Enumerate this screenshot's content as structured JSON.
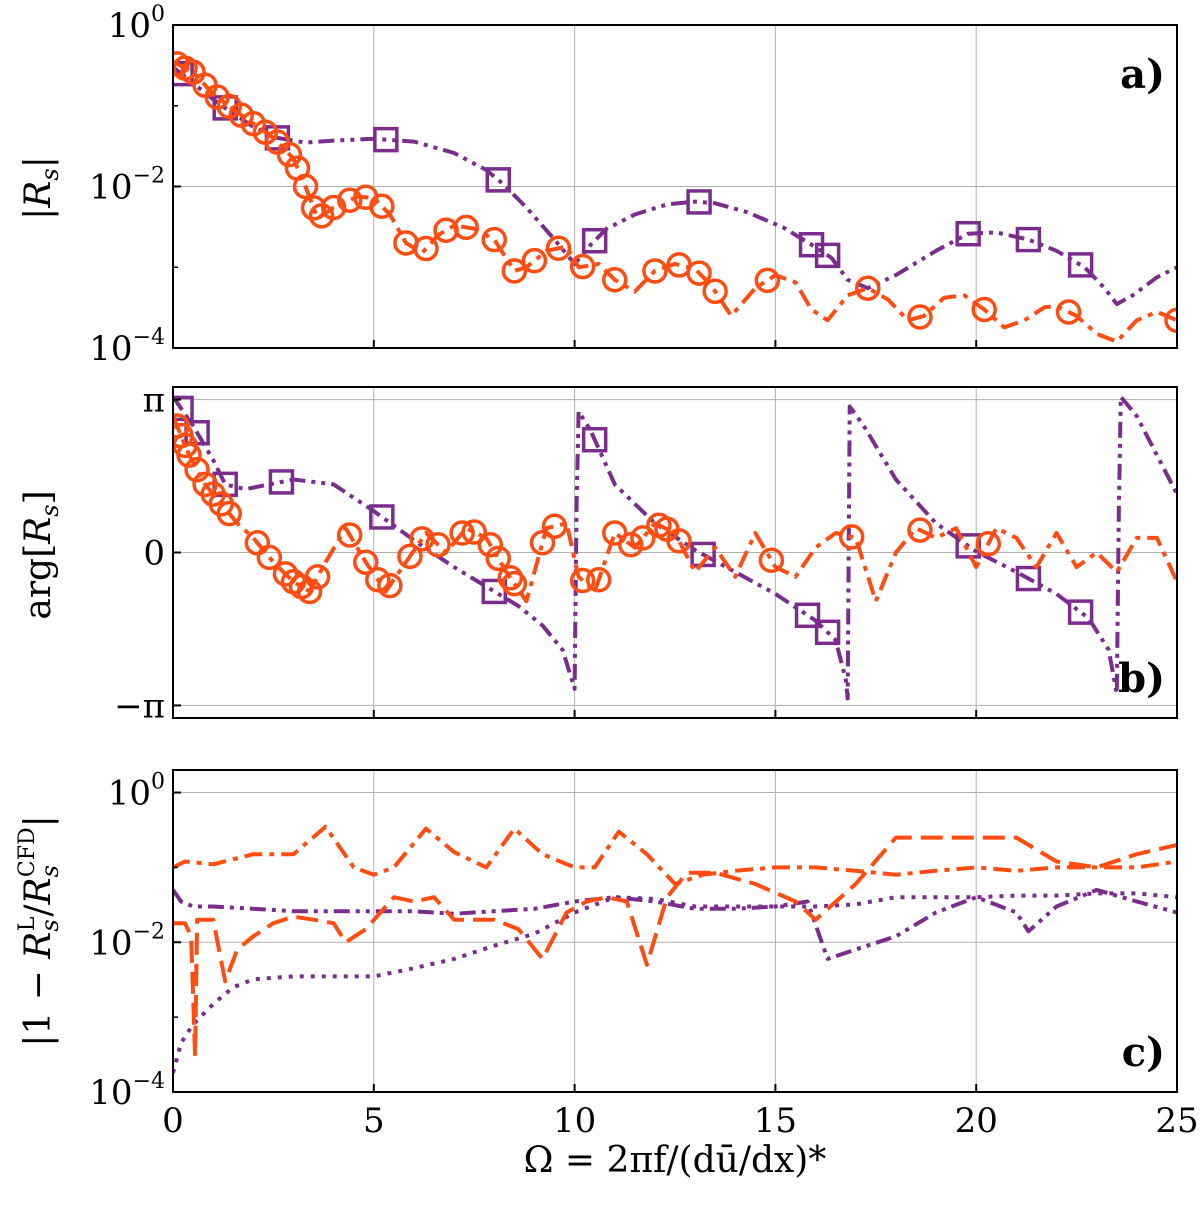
{
  "colors": {
    "purple": "#7B2D8E",
    "orange": "#FF4D12",
    "grid": "#b0b0b0",
    "axis": "#000000"
  },
  "xaxis": {
    "label": "Ω = 2πf/(dū/dx)*",
    "ticks": [
      "0",
      "5",
      "10",
      "15",
      "20",
      "25"
    ],
    "tick_values": [
      0,
      5,
      10,
      15,
      20,
      25
    ],
    "range": [
      0,
      25
    ]
  },
  "chart_data": [
    {
      "type": "line",
      "panel": "a)",
      "ylabel": "|Rs|",
      "yscale": "log",
      "ylim": [
        0.0001,
        1
      ],
      "yticks": [
        {
          "base": "10",
          "exp": "0",
          "value": 1
        },
        {
          "base": "10",
          "exp": "−2",
          "value": 0.01
        },
        {
          "base": "10",
          "exp": "−4",
          "value": 0.0001
        }
      ],
      "grid": true,
      "series": [
        {
          "color": "purple",
          "dash": "dash-dot-dot",
          "marker": "square",
          "x": [
            0.0,
            0.5,
            1.0,
            1.5,
            2.0,
            2.6,
            3.3,
            4.0,
            5.0,
            6.0,
            7.0,
            7.8,
            8.2,
            8.8,
            9.5,
            10.0,
            10.4,
            10.8,
            11.5,
            12.3,
            13.0,
            13.5,
            14.3,
            15.2,
            15.9,
            16.4,
            16.8,
            17.3,
            18.0,
            19.0,
            19.8,
            20.5,
            21.3,
            22.0,
            22.7,
            23.2,
            23.5,
            23.9,
            24.5,
            25.0
          ],
          "y": [
            0.3,
            0.19,
            0.12,
            0.08,
            0.055,
            0.04,
            0.035,
            0.037,
            0.039,
            0.036,
            0.026,
            0.016,
            0.011,
            0.0055,
            0.0022,
            0.0011,
            0.0019,
            0.003,
            0.0045,
            0.006,
            0.0065,
            0.0062,
            0.0048,
            0.0031,
            0.0019,
            0.0013,
            0.0007,
            0.00055,
            0.0008,
            0.0016,
            0.0026,
            0.0027,
            0.0022,
            0.0016,
            0.001,
            0.00055,
            0.00035,
            0.00045,
            0.00075,
            0.001
          ],
          "markers_x": [
            0.2,
            1.3,
            2.6,
            5.3,
            8.1,
            10.5,
            13.1,
            15.9,
            16.3,
            19.8,
            21.3,
            22.6
          ]
        },
        {
          "color": "orange",
          "dash": "dash-dot",
          "marker": "circle",
          "x": [
            0.0,
            0.5,
            1.0,
            1.5,
            2.0,
            2.5,
            3.0,
            3.3,
            3.6,
            4.0,
            4.6,
            5.0,
            5.4,
            5.8,
            6.2,
            6.6,
            7.0,
            7.5,
            8.0,
            8.5,
            8.8,
            9.3,
            9.8,
            10.1,
            10.6,
            11.0,
            11.5,
            12.0,
            12.5,
            13.0,
            13.4,
            13.9,
            14.5,
            15.0,
            15.5,
            15.9,
            16.3,
            16.8,
            17.3,
            17.8,
            18.3,
            18.7,
            19.2,
            19.7,
            20.2,
            20.7,
            21.2,
            21.7,
            22.0,
            22.5,
            23.0,
            23.5,
            24.0,
            24.5,
            25.0
          ],
          "y": [
            0.35,
            0.26,
            0.14,
            0.09,
            0.06,
            0.04,
            0.022,
            0.01,
            0.004,
            0.0055,
            0.0075,
            0.0072,
            0.0045,
            0.002,
            0.0015,
            0.0025,
            0.0033,
            0.003,
            0.0022,
            0.0009,
            0.001,
            0.0016,
            0.0018,
            0.001,
            0.0011,
            0.0007,
            0.0005,
            0.0009,
            0.0011,
            0.00095,
            0.0006,
            0.00025,
            0.00055,
            0.0008,
            0.00065,
            0.0003,
            0.00022,
            0.00045,
            0.00055,
            0.0004,
            0.00022,
            0.00025,
            0.00042,
            0.00045,
            0.0003,
            0.00018,
            0.00022,
            0.00032,
            0.00033,
            0.00025,
            0.00015,
            0.00012,
            0.00022,
            0.00028,
            0.00022
          ],
          "markers_x": [
            0.1,
            0.3,
            0.5,
            0.8,
            1.1,
            1.4,
            1.7,
            2.0,
            2.3,
            2.6,
            2.9,
            3.1,
            3.3,
            3.5,
            3.7,
            4.0,
            4.4,
            4.8,
            5.2,
            5.8,
            6.3,
            6.8,
            7.3,
            8.0,
            8.5,
            9.0,
            9.6,
            10.2,
            11.0,
            12.0,
            12.6,
            13.1,
            13.5,
            14.8,
            17.3,
            18.6,
            20.2,
            22.3,
            25.0
          ]
        }
      ]
    },
    {
      "type": "line",
      "panel": "b)",
      "ylabel": "arg[Rs]",
      "yscale": "linear",
      "ylim": [
        -3.4,
        3.4
      ],
      "yticks": [
        {
          "label": "π",
          "value": 3.14159
        },
        {
          "label": "0",
          "value": 0
        },
        {
          "label": "−π",
          "value": -3.14159
        }
      ],
      "grid": true,
      "series": [
        {
          "color": "purple",
          "dash": "dash-dot-dot",
          "marker": "square",
          "x": [
            0.0,
            0.5,
            1.0,
            1.3,
            1.8,
            2.4,
            3.0,
            4.0,
            5.0,
            6.0,
            7.0,
            8.0,
            8.6,
            9.2,
            9.7,
            10.0,
            10.05,
            10.1,
            10.4,
            11.0,
            12.0,
            13.0,
            14.0,
            15.0,
            16.0,
            16.5,
            16.75,
            16.8,
            16.85,
            17.2,
            18.0,
            19.0,
            20.0,
            21.0,
            22.0,
            22.8,
            23.3,
            23.5,
            23.55,
            23.6,
            24.0,
            24.5,
            25.0
          ],
          "y": [
            3.2,
            2.6,
            1.9,
            1.4,
            1.3,
            1.4,
            1.5,
            1.4,
            0.85,
            0.25,
            -0.3,
            -0.8,
            -1.1,
            -1.5,
            -2.0,
            -2.8,
            1.0,
            2.9,
            2.5,
            1.4,
            0.6,
            0.05,
            -0.4,
            -0.85,
            -1.4,
            -1.8,
            -2.6,
            -3.0,
            3.0,
            2.6,
            1.5,
            0.6,
            0.02,
            -0.4,
            -0.85,
            -1.35,
            -2.0,
            -2.9,
            0.8,
            3.2,
            2.8,
            2.0,
            1.2
          ],
          "markers_x": [
            0.2,
            0.6,
            1.3,
            2.7,
            5.2,
            8.0,
            10.5,
            13.2,
            15.8,
            16.3,
            19.8,
            21.3,
            22.6
          ]
        },
        {
          "color": "orange",
          "dash": "dash-dot",
          "marker": "circle",
          "x": [
            0.0,
            0.4,
            0.8,
            1.2,
            1.6,
            2.0,
            2.5,
            3.0,
            3.4,
            3.8,
            4.3,
            4.8,
            5.3,
            5.8,
            6.3,
            6.8,
            7.3,
            7.8,
            8.3,
            8.8,
            9.3,
            9.8,
            10.1,
            10.5,
            11.0,
            11.5,
            12.0,
            12.5,
            13.0,
            13.5,
            14.0,
            14.5,
            15.0,
            15.5,
            16.0,
            16.5,
            17.0,
            17.5,
            18.0,
            18.5,
            19.0,
            19.5,
            20.0,
            20.5,
            21.0,
            21.5,
            22.0,
            22.5,
            23.0,
            23.5,
            24.0,
            24.5,
            25.0
          ],
          "y": [
            2.8,
            2.0,
            1.4,
            1.0,
            0.6,
            0.3,
            -0.2,
            -0.6,
            -0.8,
            -0.2,
            0.5,
            -0.2,
            -0.8,
            -0.2,
            0.4,
            0.0,
            0.5,
            0.3,
            -0.4,
            -1.0,
            0.5,
            0.6,
            -0.5,
            -0.8,
            0.4,
            0.1,
            0.6,
            0.4,
            -0.4,
            0.1,
            -0.5,
            0.4,
            -0.3,
            -0.5,
            0.1,
            0.4,
            0.3,
            -1.0,
            0.0,
            0.5,
            0.3,
            0.5,
            -0.3,
            0.5,
            0.3,
            -0.3,
            0.4,
            -0.3,
            0.0,
            -0.4,
            0.3,
            0.3,
            -0.6
          ],
          "markers_x": [
            0.1,
            0.2,
            0.3,
            0.4,
            0.6,
            0.8,
            1.0,
            1.2,
            1.4,
            2.1,
            2.4,
            2.8,
            3.0,
            3.2,
            3.4,
            3.6,
            4.4,
            4.8,
            5.1,
            5.4,
            5.9,
            6.2,
            6.6,
            7.2,
            7.5,
            7.9,
            8.1,
            8.4,
            8.5,
            9.2,
            9.5,
            10.2,
            10.6,
            11.0,
            11.4,
            11.7,
            12.1,
            12.3,
            12.6,
            14.9,
            16.9,
            18.6,
            20.3
          ]
        }
      ]
    },
    {
      "type": "line",
      "panel": "c)",
      "ylabel": "|1 − RsL/RsCFD|",
      "yscale": "log",
      "ylim": [
        0.0001,
        2
      ],
      "yticks": [
        {
          "base": "10",
          "exp": "0",
          "value": 1
        },
        {
          "base": "10",
          "exp": "−2",
          "value": 0.01
        },
        {
          "base": "10",
          "exp": "−4",
          "value": 0.0001
        }
      ],
      "grid": true,
      "series": [
        {
          "color": "purple",
          "dash": "dash-dot-dot",
          "x": [
            0.0,
            0.2,
            0.5,
            1.0,
            2.0,
            3.0,
            4.0,
            5.0,
            6.0,
            7.0,
            8.0,
            9.0,
            10.0,
            11.0,
            12.0,
            13.0,
            14.0,
            15.0,
            15.8,
            16.3,
            17.0,
            18.0,
            19.0,
            20.0,
            21.0,
            21.3,
            22.0,
            23.0,
            24.0,
            25.0
          ],
          "y": [
            0.05,
            0.035,
            0.03,
            0.03,
            0.028,
            0.026,
            0.026,
            0.026,
            0.026,
            0.024,
            0.026,
            0.028,
            0.035,
            0.04,
            0.035,
            0.028,
            0.028,
            0.03,
            0.035,
            0.006,
            0.008,
            0.012,
            0.025,
            0.04,
            0.025,
            0.014,
            0.03,
            0.05,
            0.035,
            0.025
          ]
        },
        {
          "color": "purple",
          "dash": "dot",
          "x": [
            0.0,
            0.2,
            0.5,
            1.0,
            1.5,
            2.0,
            3.0,
            4.0,
            5.0,
            6.0,
            7.0,
            8.0,
            9.0,
            10.0,
            11.0,
            12.0,
            13.0,
            14.0,
            15.0,
            16.0,
            17.0,
            18.0,
            19.0,
            20.0,
            21.0,
            22.0,
            23.0,
            24.0,
            25.0
          ],
          "y": [
            0.00018,
            0.00045,
            0.0008,
            0.0015,
            0.0025,
            0.0032,
            0.0035,
            0.0035,
            0.0035,
            0.0045,
            0.006,
            0.009,
            0.013,
            0.025,
            0.04,
            0.038,
            0.03,
            0.03,
            0.03,
            0.03,
            0.032,
            0.04,
            0.04,
            0.04,
            0.042,
            0.042,
            0.045,
            0.045,
            0.04
          ]
        },
        {
          "color": "orange",
          "dash": "dash-dot",
          "x": [
            0.0,
            0.3,
            1.0,
            2.0,
            3.0,
            3.8,
            4.5,
            5.0,
            5.5,
            6.3,
            7.0,
            7.8,
            8.5,
            9.2,
            10.0,
            10.5,
            11.1,
            11.8,
            12.5,
            13.2,
            14.0,
            15.0,
            16.0,
            17.0,
            18.0,
            19.0,
            20.0,
            21.0,
            22.0,
            23.0,
            24.0,
            25.0
          ],
          "y": [
            0.1,
            0.12,
            0.11,
            0.15,
            0.15,
            0.35,
            0.1,
            0.08,
            0.1,
            0.33,
            0.16,
            0.1,
            0.33,
            0.15,
            0.1,
            0.1,
            0.3,
            0.15,
            0.06,
            0.08,
            0.09,
            0.1,
            0.1,
            0.09,
            0.08,
            0.09,
            0.1,
            0.09,
            0.1,
            0.1,
            0.1,
            0.12
          ]
        },
        {
          "color": "orange",
          "dash": "dash",
          "x": [
            0.0,
            0.3,
            0.45,
            0.55,
            0.6,
            1.0,
            1.3,
            1.6,
            2.0,
            2.5,
            3.0,
            3.5,
            4.0,
            4.3,
            4.8,
            5.5,
            6.0,
            6.5,
            7.0,
            7.5,
            8.0,
            8.6,
            9.2,
            9.8,
            10.3,
            10.8,
            11.3,
            11.8,
            12.3,
            12.8,
            13.5,
            14.5,
            15.5,
            16.0,
            17.0,
            18.0,
            19.0,
            20.0,
            21.0,
            22.0,
            23.0,
            24.0,
            25.0
          ],
          "y": [
            0.018,
            0.018,
            0.012,
            0.0003,
            0.02,
            0.02,
            0.003,
            0.008,
            0.012,
            0.018,
            0.022,
            0.02,
            0.018,
            0.01,
            0.015,
            0.04,
            0.035,
            0.04,
            0.02,
            0.02,
            0.02,
            0.015,
            0.006,
            0.025,
            0.035,
            0.04,
            0.035,
            0.005,
            0.04,
            0.085,
            0.085,
            0.06,
            0.035,
            0.02,
            0.06,
            0.25,
            0.25,
            0.25,
            0.25,
            0.12,
            0.1,
            0.15,
            0.2
          ]
        }
      ]
    }
  ]
}
